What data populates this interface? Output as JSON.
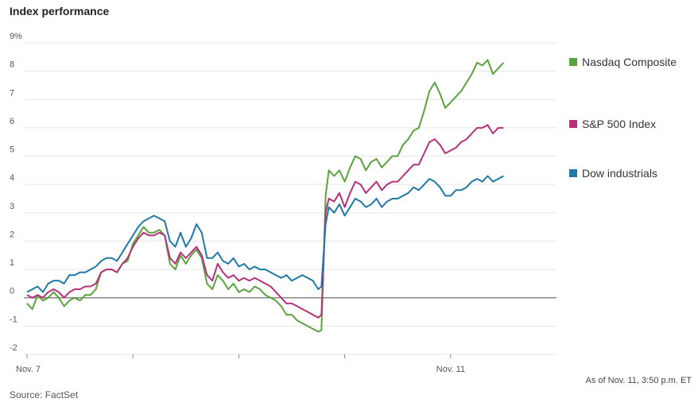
{
  "chart_data": {
    "type": "line",
    "title": "Index performance",
    "note": "As of Nov. 11, 3:50 p.m. ET",
    "source": "Source: FactSet",
    "ylim": [
      -2,
      9
    ],
    "yticks": [
      {
        "v": 9,
        "label": "9%"
      },
      {
        "v": 8,
        "label": "8"
      },
      {
        "v": 7,
        "label": "7"
      },
      {
        "v": 6,
        "label": "6"
      },
      {
        "v": 5,
        "label": "5"
      },
      {
        "v": 4,
        "label": "4"
      },
      {
        "v": 3,
        "label": "3"
      },
      {
        "v": 2,
        "label": "2"
      },
      {
        "v": 1,
        "label": "1"
      },
      {
        "v": 0,
        "label": "0"
      },
      {
        "v": -1,
        "label": "-1"
      },
      {
        "v": -2,
        "label": "-2"
      }
    ],
    "xlim": [
      0,
      5
    ],
    "xticks": [
      {
        "v": 0,
        "label": "Nov. 7"
      },
      {
        "v": 1,
        "label": ""
      },
      {
        "v": 2,
        "label": ""
      },
      {
        "v": 3,
        "label": ""
      },
      {
        "v": 4,
        "label": "Nov. 11"
      }
    ],
    "grid": true,
    "legend": "right",
    "series": [
      {
        "name": "Nasdaq Composite",
        "color": "#5aa23e",
        "points": [
          [
            0,
            -0.2
          ],
          [
            0.05,
            -0.4
          ],
          [
            0.1,
            0.1
          ],
          [
            0.15,
            -0.1
          ],
          [
            0.2,
            0.0
          ],
          [
            0.25,
            0.2
          ],
          [
            0.3,
            0.0
          ],
          [
            0.35,
            -0.3
          ],
          [
            0.4,
            -0.1
          ],
          [
            0.45,
            0.0
          ],
          [
            0.5,
            -0.1
          ],
          [
            0.55,
            0.1
          ],
          [
            0.6,
            0.1
          ],
          [
            0.65,
            0.3
          ],
          [
            0.7,
            0.9
          ],
          [
            0.75,
            1.0
          ],
          [
            0.8,
            1.0
          ],
          [
            0.85,
            0.9
          ],
          [
            0.9,
            1.2
          ],
          [
            0.95,
            1.3
          ],
          [
            1.0,
            1.9
          ],
          [
            1.05,
            2.2
          ],
          [
            1.1,
            2.5
          ],
          [
            1.15,
            2.3
          ],
          [
            1.2,
            2.3
          ],
          [
            1.25,
            2.4
          ],
          [
            1.3,
            2.2
          ],
          [
            1.35,
            1.2
          ],
          [
            1.4,
            1.0
          ],
          [
            1.45,
            1.5
          ],
          [
            1.5,
            1.2
          ],
          [
            1.55,
            1.5
          ],
          [
            1.6,
            1.7
          ],
          [
            1.65,
            1.4
          ],
          [
            1.7,
            0.5
          ],
          [
            1.75,
            0.3
          ],
          [
            1.8,
            0.8
          ],
          [
            1.85,
            0.6
          ],
          [
            1.9,
            0.3
          ],
          [
            1.95,
            0.5
          ],
          [
            2.0,
            0.2
          ],
          [
            2.05,
            0.3
          ],
          [
            2.1,
            0.2
          ],
          [
            2.15,
            0.4
          ],
          [
            2.2,
            0.3
          ],
          [
            2.25,
            0.1
          ],
          [
            2.3,
            0.0
          ],
          [
            2.35,
            -0.1
          ],
          [
            2.4,
            -0.3
          ],
          [
            2.45,
            -0.6
          ],
          [
            2.5,
            -0.6
          ],
          [
            2.55,
            -0.8
          ],
          [
            2.6,
            -0.9
          ],
          [
            2.65,
            -1.0
          ],
          [
            2.7,
            -1.1
          ],
          [
            2.75,
            -1.2
          ],
          [
            2.78,
            -1.15
          ],
          [
            2.82,
            3.6
          ],
          [
            2.85,
            4.5
          ],
          [
            2.9,
            4.3
          ],
          [
            2.95,
            4.5
          ],
          [
            3.0,
            4.1
          ],
          [
            3.05,
            4.6
          ],
          [
            3.1,
            5.0
          ],
          [
            3.15,
            4.9
          ],
          [
            3.2,
            4.5
          ],
          [
            3.25,
            4.8
          ],
          [
            3.3,
            4.9
          ],
          [
            3.35,
            4.6
          ],
          [
            3.4,
            4.8
          ],
          [
            3.45,
            5.0
          ],
          [
            3.5,
            5.0
          ],
          [
            3.55,
            5.4
          ],
          [
            3.6,
            5.6
          ],
          [
            3.65,
            5.9
          ],
          [
            3.7,
            6.0
          ],
          [
            3.75,
            6.6
          ],
          [
            3.8,
            7.3
          ],
          [
            3.85,
            7.6
          ],
          [
            3.9,
            7.2
          ],
          [
            3.95,
            6.7
          ],
          [
            4.0,
            6.9
          ],
          [
            4.05,
            7.1
          ],
          [
            4.1,
            7.3
          ],
          [
            4.15,
            7.6
          ],
          [
            4.2,
            7.9
          ],
          [
            4.25,
            8.3
          ],
          [
            4.3,
            8.2
          ],
          [
            4.35,
            8.4
          ],
          [
            4.4,
            7.9
          ],
          [
            4.45,
            8.1
          ],
          [
            4.5,
            8.3
          ]
        ]
      },
      {
        "name": "S&P 500 Index",
        "color": "#b5317a",
        "points": [
          [
            0,
            0.1
          ],
          [
            0.05,
            0.0
          ],
          [
            0.1,
            0.1
          ],
          [
            0.15,
            0.0
          ],
          [
            0.2,
            0.2
          ],
          [
            0.25,
            0.3
          ],
          [
            0.3,
            0.2
          ],
          [
            0.35,
            0.0
          ],
          [
            0.4,
            0.2
          ],
          [
            0.45,
            0.3
          ],
          [
            0.5,
            0.3
          ],
          [
            0.55,
            0.4
          ],
          [
            0.6,
            0.4
          ],
          [
            0.65,
            0.5
          ],
          [
            0.7,
            0.9
          ],
          [
            0.75,
            1.0
          ],
          [
            0.8,
            1.0
          ],
          [
            0.85,
            0.9
          ],
          [
            0.9,
            1.2
          ],
          [
            0.95,
            1.4
          ],
          [
            1.0,
            1.8
          ],
          [
            1.05,
            2.1
          ],
          [
            1.1,
            2.3
          ],
          [
            1.15,
            2.2
          ],
          [
            1.2,
            2.2
          ],
          [
            1.25,
            2.3
          ],
          [
            1.3,
            2.2
          ],
          [
            1.35,
            1.4
          ],
          [
            1.4,
            1.2
          ],
          [
            1.45,
            1.6
          ],
          [
            1.5,
            1.4
          ],
          [
            1.55,
            1.6
          ],
          [
            1.6,
            1.8
          ],
          [
            1.65,
            1.5
          ],
          [
            1.7,
            0.8
          ],
          [
            1.75,
            0.6
          ],
          [
            1.8,
            1.2
          ],
          [
            1.85,
            0.9
          ],
          [
            1.9,
            0.7
          ],
          [
            1.95,
            0.8
          ],
          [
            2.0,
            0.6
          ],
          [
            2.05,
            0.7
          ],
          [
            2.1,
            0.6
          ],
          [
            2.15,
            0.7
          ],
          [
            2.2,
            0.6
          ],
          [
            2.25,
            0.5
          ],
          [
            2.3,
            0.4
          ],
          [
            2.35,
            0.2
          ],
          [
            2.4,
            0.0
          ],
          [
            2.45,
            -0.2
          ],
          [
            2.5,
            -0.2
          ],
          [
            2.55,
            -0.3
          ],
          [
            2.6,
            -0.4
          ],
          [
            2.65,
            -0.5
          ],
          [
            2.7,
            -0.6
          ],
          [
            2.75,
            -0.7
          ],
          [
            2.78,
            -0.6
          ],
          [
            2.82,
            3.0
          ],
          [
            2.85,
            3.5
          ],
          [
            2.9,
            3.4
          ],
          [
            2.95,
            3.7
          ],
          [
            3.0,
            3.2
          ],
          [
            3.05,
            3.7
          ],
          [
            3.1,
            4.1
          ],
          [
            3.15,
            4.0
          ],
          [
            3.2,
            3.7
          ],
          [
            3.25,
            3.9
          ],
          [
            3.3,
            4.1
          ],
          [
            3.35,
            3.8
          ],
          [
            3.4,
            4.0
          ],
          [
            3.45,
            4.1
          ],
          [
            3.5,
            4.1
          ],
          [
            3.55,
            4.3
          ],
          [
            3.6,
            4.5
          ],
          [
            3.65,
            4.7
          ],
          [
            3.7,
            4.7
          ],
          [
            3.75,
            5.1
          ],
          [
            3.8,
            5.5
          ],
          [
            3.85,
            5.6
          ],
          [
            3.9,
            5.4
          ],
          [
            3.95,
            5.1
          ],
          [
            4.0,
            5.2
          ],
          [
            4.05,
            5.3
          ],
          [
            4.1,
            5.5
          ],
          [
            4.15,
            5.6
          ],
          [
            4.2,
            5.8
          ],
          [
            4.25,
            6.0
          ],
          [
            4.3,
            6.0
          ],
          [
            4.35,
            6.1
          ],
          [
            4.4,
            5.8
          ],
          [
            4.45,
            6.0
          ],
          [
            4.5,
            6.0
          ]
        ]
      },
      {
        "name": "Dow industrials",
        "color": "#1f78a5",
        "points": [
          [
            0,
            0.2
          ],
          [
            0.05,
            0.3
          ],
          [
            0.1,
            0.4
          ],
          [
            0.15,
            0.2
          ],
          [
            0.2,
            0.5
          ],
          [
            0.25,
            0.6
          ],
          [
            0.3,
            0.6
          ],
          [
            0.35,
            0.5
          ],
          [
            0.4,
            0.8
          ],
          [
            0.45,
            0.8
          ],
          [
            0.5,
            0.9
          ],
          [
            0.55,
            0.9
          ],
          [
            0.6,
            1.0
          ],
          [
            0.65,
            1.1
          ],
          [
            0.7,
            1.3
          ],
          [
            0.75,
            1.4
          ],
          [
            0.8,
            1.4
          ],
          [
            0.85,
            1.3
          ],
          [
            0.9,
            1.6
          ],
          [
            0.95,
            1.9
          ],
          [
            1.0,
            2.2
          ],
          [
            1.05,
            2.5
          ],
          [
            1.1,
            2.7
          ],
          [
            1.15,
            2.8
          ],
          [
            1.2,
            2.9
          ],
          [
            1.25,
            2.8
          ],
          [
            1.3,
            2.7
          ],
          [
            1.35,
            2.0
          ],
          [
            1.4,
            1.8
          ],
          [
            1.45,
            2.3
          ],
          [
            1.5,
            1.8
          ],
          [
            1.55,
            2.1
          ],
          [
            1.6,
            2.6
          ],
          [
            1.65,
            2.3
          ],
          [
            1.7,
            1.4
          ],
          [
            1.75,
            1.4
          ],
          [
            1.8,
            1.6
          ],
          [
            1.85,
            1.3
          ],
          [
            1.9,
            1.2
          ],
          [
            1.95,
            1.4
          ],
          [
            2.0,
            1.1
          ],
          [
            2.05,
            1.2
          ],
          [
            2.1,
            1.0
          ],
          [
            2.15,
            1.1
          ],
          [
            2.2,
            1.0
          ],
          [
            2.25,
            1.0
          ],
          [
            2.3,
            0.9
          ],
          [
            2.35,
            0.8
          ],
          [
            2.4,
            0.7
          ],
          [
            2.45,
            0.8
          ],
          [
            2.5,
            0.6
          ],
          [
            2.55,
            0.7
          ],
          [
            2.6,
            0.8
          ],
          [
            2.65,
            0.7
          ],
          [
            2.7,
            0.6
          ],
          [
            2.75,
            0.3
          ],
          [
            2.78,
            0.4
          ],
          [
            2.82,
            2.6
          ],
          [
            2.85,
            3.2
          ],
          [
            2.9,
            3.0
          ],
          [
            2.95,
            3.3
          ],
          [
            3.0,
            2.9
          ],
          [
            3.05,
            3.2
          ],
          [
            3.1,
            3.5
          ],
          [
            3.15,
            3.4
          ],
          [
            3.2,
            3.2
          ],
          [
            3.25,
            3.3
          ],
          [
            3.3,
            3.5
          ],
          [
            3.35,
            3.2
          ],
          [
            3.4,
            3.4
          ],
          [
            3.45,
            3.5
          ],
          [
            3.5,
            3.5
          ],
          [
            3.55,
            3.6
          ],
          [
            3.6,
            3.7
          ],
          [
            3.65,
            3.9
          ],
          [
            3.7,
            3.8
          ],
          [
            3.75,
            4.0
          ],
          [
            3.8,
            4.2
          ],
          [
            3.85,
            4.1
          ],
          [
            3.9,
            3.9
          ],
          [
            3.95,
            3.6
          ],
          [
            4.0,
            3.6
          ],
          [
            4.05,
            3.8
          ],
          [
            4.1,
            3.8
          ],
          [
            4.15,
            3.9
          ],
          [
            4.2,
            4.1
          ],
          [
            4.25,
            4.2
          ],
          [
            4.3,
            4.1
          ],
          [
            4.35,
            4.3
          ],
          [
            4.4,
            4.1
          ],
          [
            4.45,
            4.2
          ],
          [
            4.5,
            4.3
          ]
        ]
      }
    ]
  }
}
